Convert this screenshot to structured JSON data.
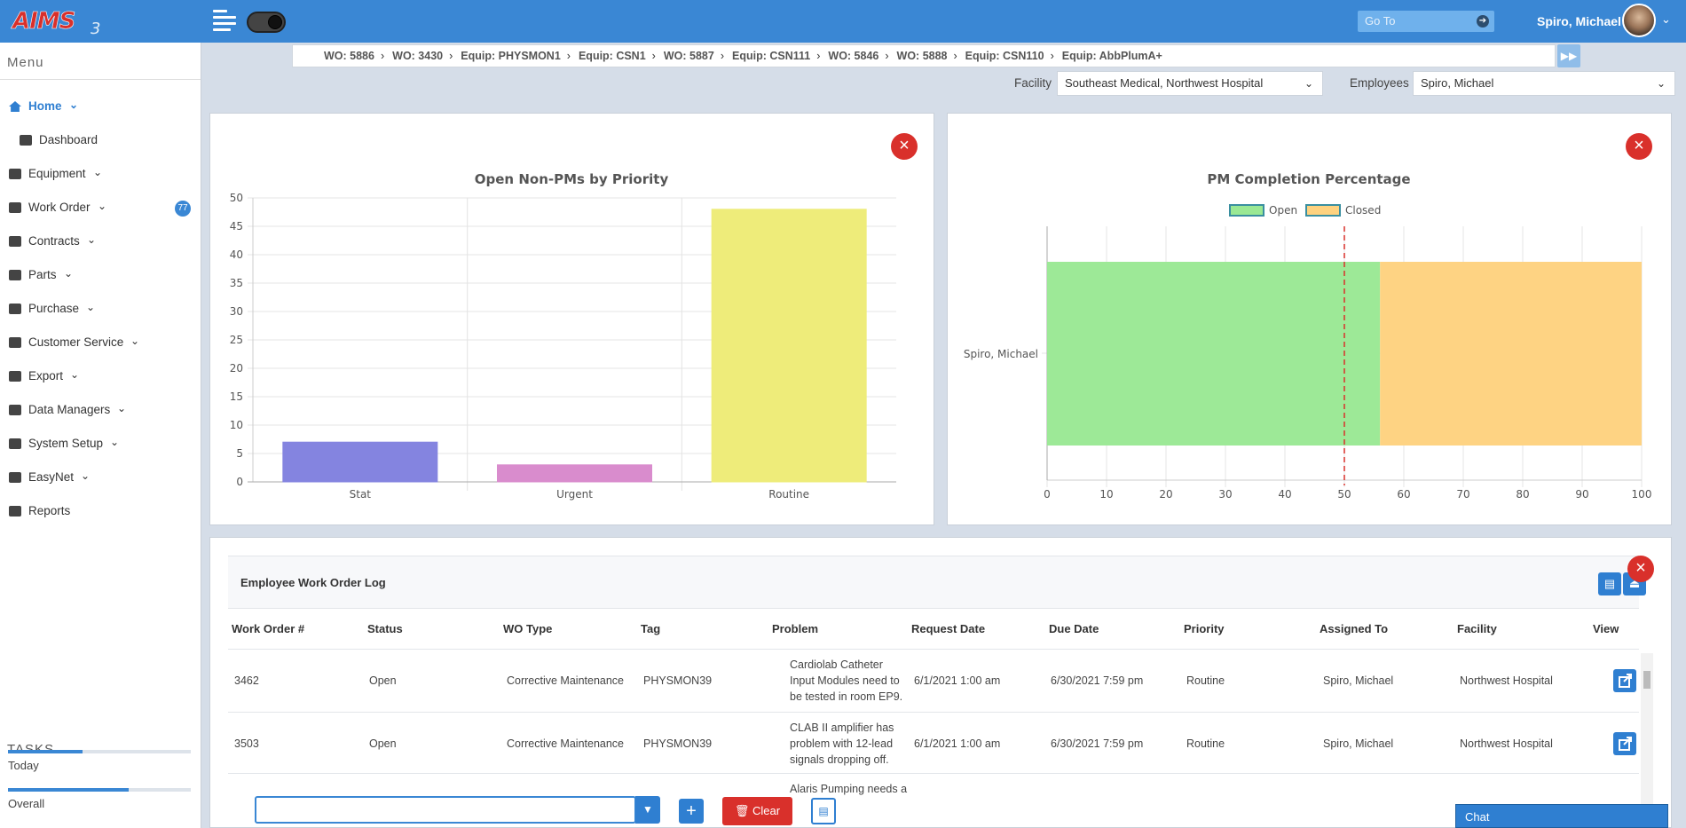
{
  "header": {
    "goto_placeholder": "Go To",
    "user_name": "Spiro, Michael"
  },
  "menu": {
    "heading": "Menu",
    "items": [
      {
        "label": "Home",
        "icon": "home-icon",
        "caret": "⌄"
      },
      {
        "label": "Dashboard",
        "icon": "dashboard-icon"
      },
      {
        "label": "Equipment",
        "icon": "equipment-icon",
        "caret": "⌄"
      },
      {
        "label": "Work Order",
        "icon": "work-order-icon",
        "caret": "⌄",
        "badge": "77"
      },
      {
        "label": "Contracts",
        "icon": "contracts-icon",
        "caret": "⌄"
      },
      {
        "label": "Parts",
        "icon": "parts-icon",
        "caret": "⌄"
      },
      {
        "label": "Purchase",
        "icon": "cart-icon",
        "caret": "⌄"
      },
      {
        "label": "Customer Service",
        "icon": "users-icon",
        "caret": "⌄"
      },
      {
        "label": "Export",
        "icon": "export-icon",
        "caret": "⌄"
      },
      {
        "label": "Data Managers",
        "icon": "code-icon",
        "caret": "⌄"
      },
      {
        "label": "System Setup",
        "icon": "sliders-icon",
        "caret": "⌄"
      },
      {
        "label": "EasyNet",
        "icon": "send-icon",
        "caret": "⌄"
      },
      {
        "label": "Reports",
        "icon": "report-icon"
      }
    ]
  },
  "tasks": {
    "heading": "TASKS",
    "today_label": "Today",
    "today_progress": 0.41,
    "overall_label": "Overall",
    "overall_progress": 0.66
  },
  "breadcrumbs": [
    "WO: 5886",
    "WO: 3430",
    "Equip: PHYSMON1",
    "Equip: CSN1",
    "WO: 5887",
    "Equip: CSN111",
    "WO: 5846",
    "WO: 5888",
    "Equip: CSN110",
    "Equip: AbbPlumA+"
  ],
  "filters": {
    "facility_label": "Facility",
    "facility_value": "Southeast Medical, Northwest Hospital",
    "employees_label": "Employees",
    "employees_value": "Spiro, Michael"
  },
  "colors": {
    "accent": "#3a87d4",
    "danger": "#d9302b"
  },
  "chart_data": [
    {
      "type": "bar",
      "title": "Open Non-PMs by Priority",
      "categories": [
        "Stat",
        "Urgent",
        "Routine"
      ],
      "values": [
        7,
        3,
        48
      ],
      "colors": [
        "#8484e0",
        "#d98ccd",
        "#eeec7a"
      ],
      "ylim": [
        0,
        50
      ],
      "yticks": [
        0,
        5,
        10,
        15,
        20,
        25,
        30,
        35,
        40,
        45,
        50
      ],
      "grid": true
    },
    {
      "type": "bar",
      "orientation": "horizontal",
      "stacked": true,
      "title": "PM Completion Percentage",
      "categories": [
        "Spiro, Michael"
      ],
      "series": [
        {
          "name": "Open",
          "values": [
            56
          ],
          "color": "#9ae894"
        },
        {
          "name": "Closed",
          "values": [
            44
          ],
          "color": "#fed27f"
        }
      ],
      "xlim": [
        0,
        100
      ],
      "xticks": [
        0,
        10,
        20,
        30,
        40,
        50,
        60,
        70,
        80,
        90,
        100
      ],
      "reference_line": 50,
      "legend": "top",
      "grid": true
    }
  ],
  "log": {
    "title": "Employee Work Order Log",
    "columns": [
      "Work Order #",
      "Status",
      "WO Type",
      "Tag",
      "Problem",
      "Request Date",
      "Due Date",
      "Priority",
      "Assigned To",
      "Facility",
      "View"
    ],
    "rows": [
      {
        "wo": "3462",
        "status": "Open",
        "type": "Corrective Maintenance",
        "tag": "PHYSMON39",
        "problem": [
          "Cardiolab Catheter",
          "Input Modules need to",
          "be tested in room EP9."
        ],
        "request": "6/1/2021 1:00 am",
        "due": "6/30/2021 7:59 pm",
        "priority": "Routine",
        "assigned": "Spiro, Michael",
        "facility": "Northwest Hospital"
      },
      {
        "wo": "3503",
        "status": "Open",
        "type": "Corrective Maintenance",
        "tag": "PHYSMON39",
        "problem": [
          "CLAB II amplifier has",
          "problem with 12-lead",
          "signals dropping off."
        ],
        "request": "6/1/2021 1:00 am",
        "due": "6/30/2021 7:59 pm",
        "priority": "Routine",
        "assigned": "Spiro, Michael",
        "facility": "Northwest Hospital"
      },
      {
        "problem": [
          "Alaris Pumping needs a"
        ]
      }
    ]
  },
  "bottom": {
    "clear_label": "Clear",
    "chat_label": "Chat"
  }
}
